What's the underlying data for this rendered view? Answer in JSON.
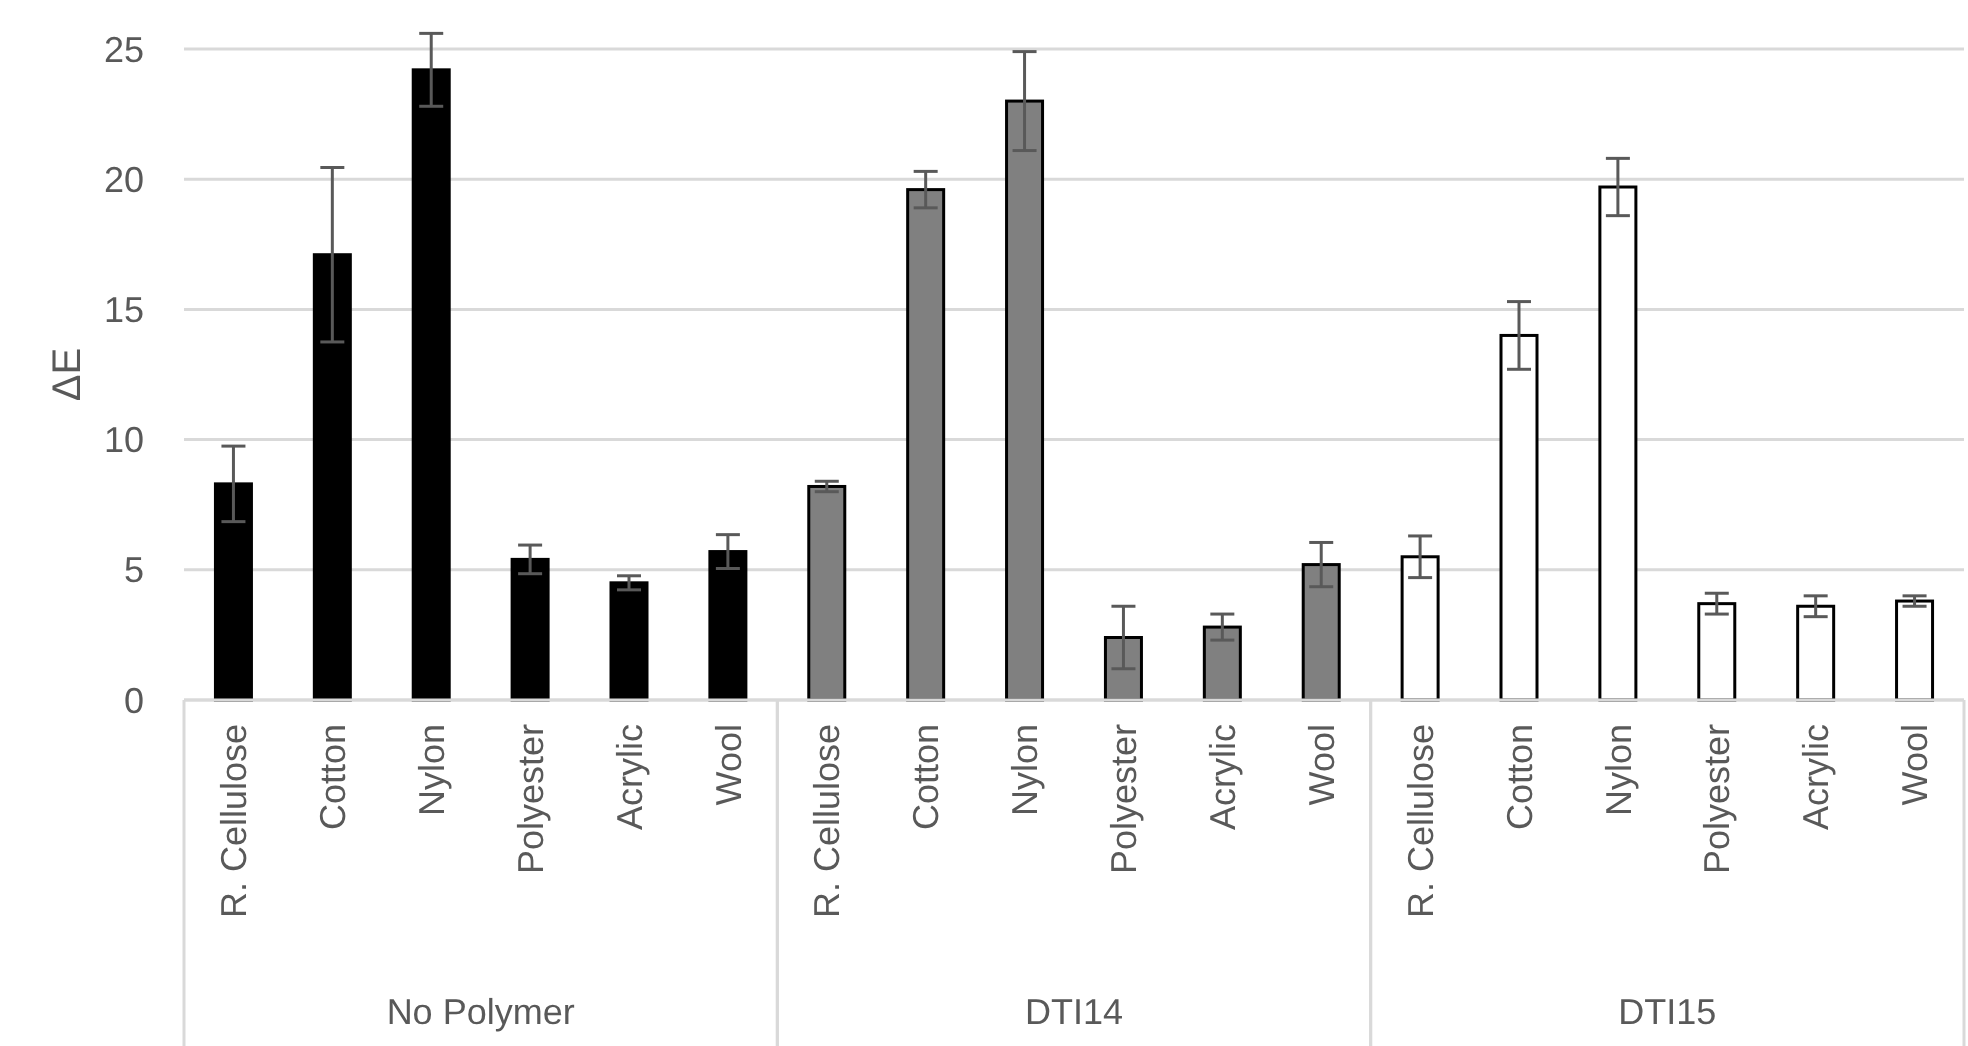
{
  "chart_data": {
    "type": "bar",
    "ylabel": "ΔE",
    "categories": [
      "R. Cellulose",
      "Cotton",
      "Nylon",
      "Polyester",
      "Acrylic",
      "Wool",
      "R. Cellulose",
      "Cotton",
      "Nylon",
      "Polyester",
      "Acrylic",
      "Wool",
      "R. Cellulose",
      "Cotton",
      "Nylon",
      "Polyester",
      "Acrylic",
      "Wool"
    ],
    "series": [
      {
        "color": "#000000",
        "values": [
          8.3,
          17.1,
          24.2,
          5.4,
          4.5,
          5.7,
          null,
          null,
          null,
          null,
          null,
          null,
          null,
          null,
          null,
          null,
          null,
          null
        ],
        "errors": [
          1.45,
          3.35,
          1.4,
          0.55,
          0.27,
          0.65,
          null,
          null,
          null,
          null,
          null,
          null,
          null,
          null,
          null,
          null,
          null,
          null
        ]
      },
      {
        "color": "#808080",
        "values": [
          null,
          null,
          null,
          null,
          null,
          null,
          8.2,
          19.6,
          23.0,
          2.4,
          2.8,
          5.2,
          null,
          null,
          null,
          null,
          null,
          null
        ],
        "errors": [
          null,
          null,
          null,
          null,
          null,
          null,
          0.2,
          0.7,
          1.9,
          1.2,
          0.5,
          0.85,
          null,
          null,
          null,
          null,
          null,
          null
        ]
      },
      {
        "color": "#ffffff",
        "values": [
          null,
          null,
          null,
          null,
          null,
          null,
          null,
          null,
          null,
          null,
          null,
          null,
          5.5,
          14.0,
          19.7,
          3.7,
          3.6,
          3.8
        ],
        "errors": [
          null,
          null,
          null,
          null,
          null,
          null,
          null,
          null,
          null,
          null,
          null,
          null,
          0.8,
          1.3,
          1.1,
          0.4,
          0.4,
          0.2
        ]
      }
    ],
    "annotations": [
      "No Polymer",
      "DTI14",
      "DTI15"
    ],
    "ylim": [
      0,
      25
    ],
    "yticks": [
      0,
      5,
      10,
      15,
      20,
      25
    ],
    "grid": "y"
  }
}
